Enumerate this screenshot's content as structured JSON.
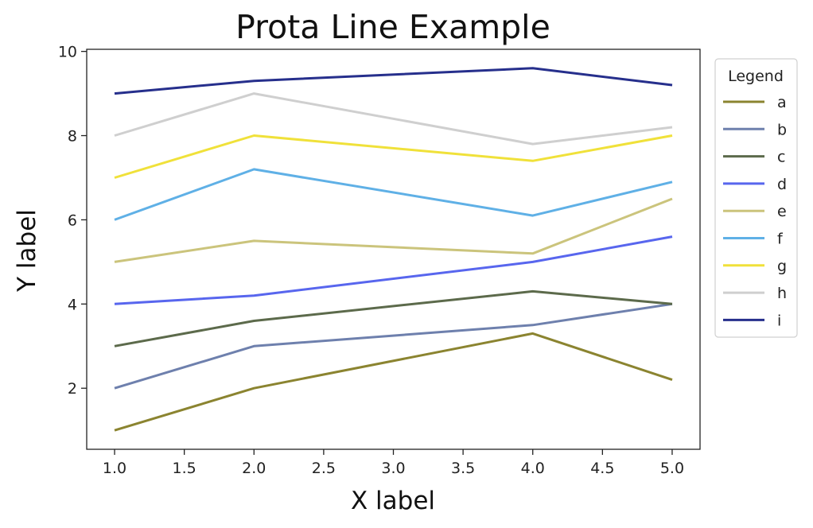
{
  "chart_data": {
    "type": "line",
    "title": "Prota Line Example",
    "xlabel": "X label",
    "ylabel": "Y label",
    "x": [
      1,
      2,
      4,
      5
    ],
    "xlim": [
      0.8,
      5.2
    ],
    "ylim": [
      0.55,
      10.05
    ],
    "xticks": [
      "1.0",
      "1.5",
      "2.0",
      "2.5",
      "3.0",
      "3.5",
      "4.0",
      "4.5",
      "5.0"
    ],
    "yticks": [
      "2",
      "4",
      "6",
      "8",
      "10"
    ],
    "grid": false,
    "legend_title": "Legend",
    "legend_position": "outside right, top",
    "series": [
      {
        "name": "a",
        "color": "#8b8430",
        "values": [
          1.0,
          2.0,
          3.3,
          2.2
        ]
      },
      {
        "name": "b",
        "color": "#6e80ad",
        "values": [
          2.0,
          3.0,
          3.5,
          4.0
        ]
      },
      {
        "name": "c",
        "color": "#5c6a4b",
        "values": [
          3.0,
          3.6,
          4.3,
          4.0
        ]
      },
      {
        "name": "d",
        "color": "#5866ee",
        "values": [
          4.0,
          4.2,
          5.0,
          5.6
        ]
      },
      {
        "name": "e",
        "color": "#cbc47c",
        "values": [
          5.0,
          5.5,
          5.2,
          6.5
        ]
      },
      {
        "name": "f",
        "color": "#5fb0e6",
        "values": [
          6.0,
          7.2,
          6.1,
          6.9
        ]
      },
      {
        "name": "g",
        "color": "#f0e13a",
        "values": [
          7.0,
          8.0,
          7.4,
          8.0
        ]
      },
      {
        "name": "h",
        "color": "#cfcfcf",
        "values": [
          8.0,
          9.0,
          7.8,
          8.2
        ]
      },
      {
        "name": "i",
        "color": "#262f8c",
        "values": [
          9.0,
          9.3,
          9.6,
          9.2
        ]
      }
    ]
  }
}
